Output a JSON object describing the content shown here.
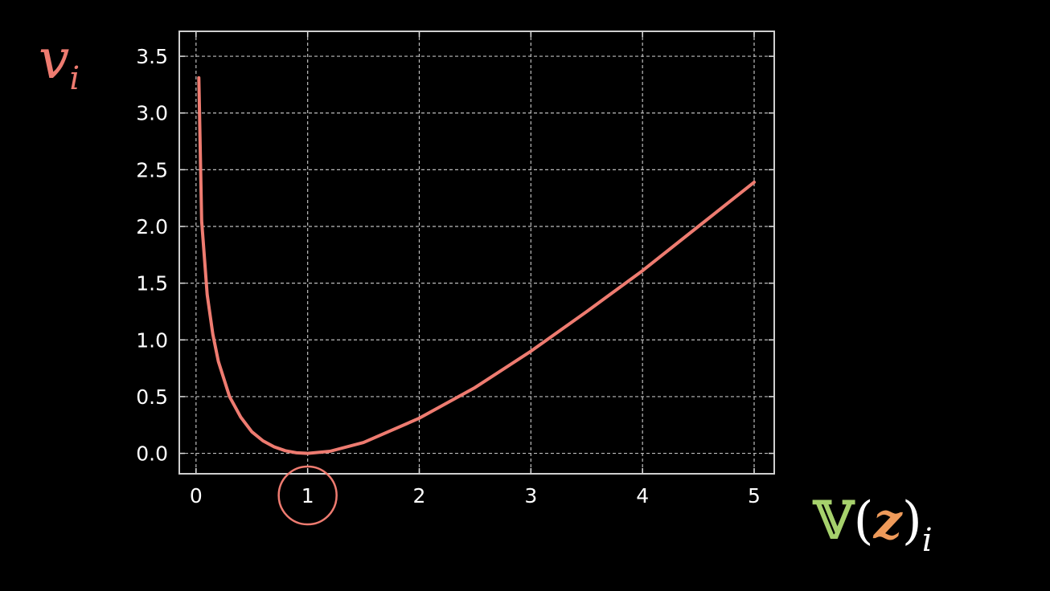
{
  "chart_data": {
    "type": "line",
    "x_ticks": [
      "0",
      "1",
      "2",
      "3",
      "4",
      "5"
    ],
    "y_ticks": [
      "0.0",
      "0.5",
      "1.0",
      "1.5",
      "2.0",
      "2.5",
      "3.0",
      "3.5"
    ],
    "xlim": [
      -0.15,
      5.18
    ],
    "ylim": [
      -0.18,
      3.72
    ],
    "grid": true,
    "ylabel": {
      "symbol": "v",
      "subscript": "i"
    },
    "xlabel": {
      "operator": "𝕍",
      "open": "(",
      "variable": "z",
      "close": ")",
      "subscript": "i"
    },
    "highlighted_x_tick": "1",
    "series": [
      {
        "color": "#ee7b70",
        "x": [
          0.025,
          0.05,
          0.1,
          0.15,
          0.2,
          0.3,
          0.4,
          0.5,
          0.6,
          0.7,
          0.8,
          0.9,
          1.0,
          1.2,
          1.5,
          2.0,
          2.5,
          3.0,
          3.5,
          4.0,
          4.5,
          5.0
        ],
        "y": [
          3.31,
          2.05,
          1.4,
          1.05,
          0.81,
          0.5,
          0.32,
          0.19,
          0.11,
          0.057,
          0.023,
          0.005,
          0.0,
          0.018,
          0.095,
          0.31,
          0.58,
          0.9,
          1.25,
          1.61,
          2.0,
          2.39
        ]
      }
    ]
  },
  "colors": {
    "curve": "#ee7b70",
    "grid": "#bdbdbd",
    "frame": "#cfcfcf",
    "highlight_circle": "#ee7b70"
  }
}
